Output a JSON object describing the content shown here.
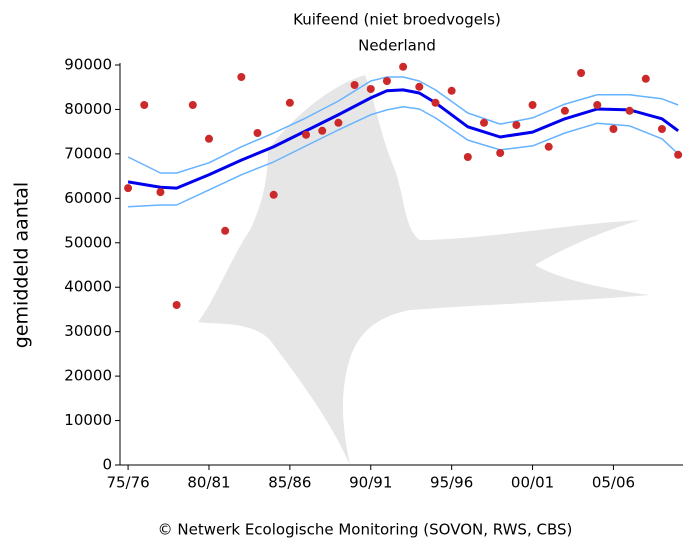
{
  "chart_data": {
    "type": "scatter",
    "title": "Kuifeend (niet broedvogels)",
    "subtitle": "Nederland",
    "y_label": "gemiddeld aantal",
    "footer": "© Netwerk Ecologische Monitoring (SOVON, RWS, CBS)",
    "xlim": [
      1974.5,
      2009.3
    ],
    "ylim": [
      0,
      90000
    ],
    "xticks": [
      {
        "value": 1975,
        "label": "75/76"
      },
      {
        "value": 1980,
        "label": "80/81"
      },
      {
        "value": 1985,
        "label": "85/86"
      },
      {
        "value": 1990,
        "label": "90/91"
      },
      {
        "value": 1995,
        "label": "95/96"
      },
      {
        "value": 2000,
        "label": "00/01"
      },
      {
        "value": 2005,
        "label": "05/06"
      }
    ],
    "yticks": [
      0,
      10000,
      20000,
      30000,
      40000,
      50000,
      60000,
      70000,
      80000,
      90000
    ],
    "series": [
      {
        "type": "line",
        "color": "#66b3ff",
        "width": 1.5,
        "x": [
          1975,
          1977,
          1978,
          1980,
          1982,
          1984,
          1986,
          1988,
          1990,
          1991,
          1992,
          1993,
          1994,
          1996,
          1998,
          2000,
          2002,
          2004,
          2006,
          2008,
          2009
        ],
        "values": [
          69300,
          65700,
          65700,
          68000,
          71600,
          74700,
          78100,
          81900,
          86400,
          87300,
          87300,
          86400,
          84400,
          79200,
          76700,
          78100,
          81200,
          83300,
          83300,
          82400,
          81000
        ]
      },
      {
        "type": "line",
        "color": "#66b3ff",
        "width": 1.5,
        "x": [
          1975,
          1977,
          1978,
          1980,
          1982,
          1984,
          1986,
          1988,
          1990,
          1991,
          1992,
          1993,
          1994,
          1996,
          1998,
          2000,
          2002,
          2004,
          2006,
          2008,
          2009
        ],
        "values": [
          58100,
          58500,
          58500,
          61900,
          65300,
          68200,
          71800,
          75400,
          78800,
          79900,
          80600,
          80100,
          78100,
          73100,
          70900,
          71800,
          74700,
          76900,
          76300,
          73400,
          70000
        ]
      },
      {
        "type": "line",
        "color": "#0000ee",
        "width": 3,
        "x": [
          1975,
          1977,
          1978,
          1980,
          1982,
          1984,
          1986,
          1988,
          1990,
          1991,
          1992,
          1993,
          1994,
          1996,
          1998,
          2000,
          2002,
          2004,
          2006,
          2008,
          2009
        ],
        "values": [
          63700,
          62500,
          62300,
          65300,
          68600,
          71600,
          75200,
          78800,
          82600,
          84200,
          84400,
          83700,
          81500,
          76100,
          73800,
          74900,
          77900,
          80100,
          79900,
          77900,
          75200
        ]
      },
      {
        "type": "scatter",
        "color": "#cc2a2a",
        "x": [
          1975,
          1976,
          1977,
          1978,
          1979,
          1980,
          1981,
          1982,
          1983,
          1984,
          1985,
          1986,
          1987,
          1988,
          1989,
          1990,
          1991,
          1992,
          1993,
          1994,
          1995,
          1996,
          1997,
          1998,
          1999,
          2000,
          2001,
          2002,
          2003,
          2004,
          2005,
          2006,
          2007,
          2008,
          2009
        ],
        "values": [
          62300,
          81000,
          61400,
          36000,
          81000,
          73400,
          52700,
          87300,
          74700,
          60800,
          81500,
          74300,
          75200,
          77000,
          85500,
          84600,
          86400,
          89600,
          85100,
          81500,
          84200,
          69300,
          77000,
          70200,
          76500,
          81000,
          71600,
          79700,
          88200,
          81000,
          75600,
          79700,
          86900,
          75600,
          69800
        ]
      }
    ]
  }
}
